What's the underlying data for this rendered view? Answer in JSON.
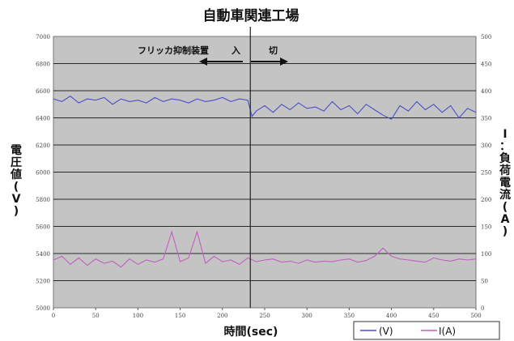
{
  "chart_data": {
    "type": "line",
    "title": "自動車関連工場",
    "xlabel": "時間(sec)",
    "ylabel_left": "電圧値(V)",
    "ylabel_right": "I：負荷電流(A)",
    "xlim": [
      0,
      500
    ],
    "ylim_left": [
      5000,
      7000
    ],
    "ylim_right": [
      0,
      500
    ],
    "x_ticks": [
      0,
      50,
      100,
      150,
      200,
      250,
      300,
      350,
      400,
      450,
      500
    ],
    "y_ticks_left": [
      5000,
      5200,
      5400,
      5600,
      5800,
      6000,
      6200,
      6400,
      6600,
      6800,
      7000
    ],
    "y_ticks_right": [
      0,
      50,
      100,
      150,
      200,
      250,
      300,
      350,
      400,
      450,
      500
    ],
    "grid": true,
    "legend_position": "bottom-right",
    "event_x": 233,
    "annotation": {
      "label": "フリッカ抑制装置",
      "on": "入",
      "off": "切"
    },
    "series": [
      {
        "name": "(V)",
        "axis": "left",
        "color": "#4a4fc8",
        "x": [
          0,
          10,
          20,
          30,
          40,
          50,
          60,
          70,
          80,
          90,
          100,
          110,
          120,
          130,
          140,
          150,
          160,
          170,
          180,
          190,
          200,
          210,
          220,
          230,
          235,
          240,
          250,
          260,
          270,
          280,
          290,
          300,
          310,
          320,
          330,
          340,
          350,
          360,
          370,
          380,
          390,
          400,
          410,
          420,
          430,
          440,
          450,
          460,
          470,
          480,
          490,
          500
        ],
        "y": [
          6540,
          6520,
          6560,
          6510,
          6540,
          6530,
          6550,
          6500,
          6540,
          6520,
          6530,
          6510,
          6550,
          6520,
          6540,
          6530,
          6510,
          6540,
          6520,
          6530,
          6550,
          6520,
          6540,
          6530,
          6410,
          6450,
          6490,
          6440,
          6500,
          6460,
          6510,
          6470,
          6480,
          6450,
          6520,
          6460,
          6490,
          6430,
          6500,
          6460,
          6420,
          6390,
          6490,
          6450,
          6520,
          6460,
          6500,
          6440,
          6490,
          6400,
          6470,
          6440
        ]
      },
      {
        "name": "I(A)",
        "axis": "right",
        "color": "#c060c0",
        "x": [
          0,
          10,
          20,
          30,
          40,
          50,
          60,
          70,
          80,
          90,
          100,
          110,
          120,
          130,
          140,
          150,
          160,
          170,
          180,
          190,
          200,
          210,
          220,
          230,
          240,
          250,
          260,
          270,
          280,
          290,
          300,
          310,
          320,
          330,
          340,
          350,
          360,
          370,
          380,
          390,
          400,
          410,
          420,
          430,
          440,
          450,
          460,
          470,
          480,
          490,
          500
        ],
        "y": [
          88,
          95,
          80,
          92,
          78,
          90,
          82,
          86,
          75,
          90,
          80,
          88,
          84,
          90,
          140,
          85,
          92,
          140,
          82,
          95,
          85,
          88,
          80,
          92,
          85,
          88,
          90,
          84,
          86,
          82,
          88,
          84,
          86,
          85,
          88,
          90,
          84,
          87,
          95,
          110,
          95,
          90,
          88,
          86,
          84,
          92,
          88,
          86,
          90,
          88,
          90
        ]
      }
    ]
  }
}
